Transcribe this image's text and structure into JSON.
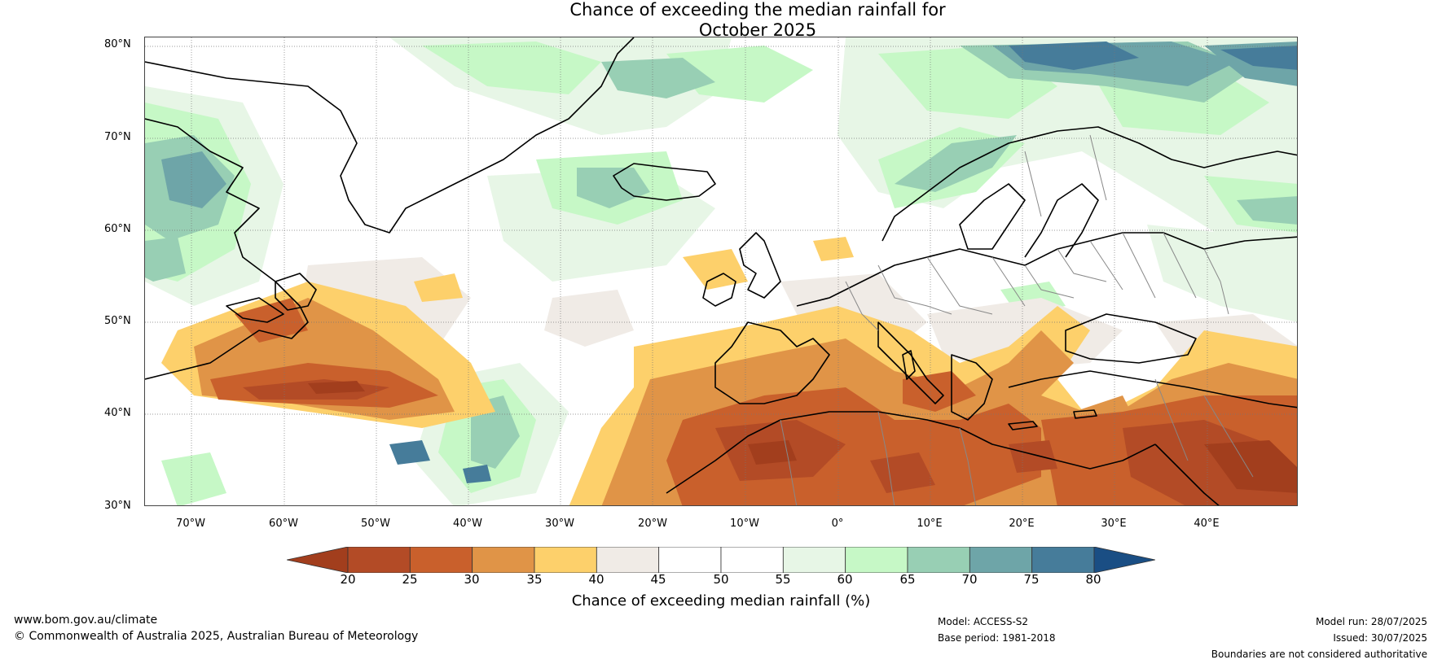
{
  "title": {
    "line1": "Chance of exceeding the median rainfall for",
    "line2": "October 2025"
  },
  "lat_labels": [
    "80°N",
    "70°N",
    "60°N",
    "50°N",
    "40°N",
    "30°N"
  ],
  "lon_labels": [
    "70°W",
    "60°W",
    "50°W",
    "40°W",
    "30°W",
    "20°W",
    "10°W",
    "0°",
    "10°E",
    "20°E",
    "30°E",
    "40°E"
  ],
  "colorbar": {
    "ticks": [
      "20",
      "25",
      "30",
      "35",
      "40",
      "45",
      "50",
      "55",
      "60",
      "65",
      "70",
      "75",
      "80"
    ],
    "colors": [
      "#a23e1d",
      "#b34b26",
      "#c9602c",
      "#e09447",
      "#fdd06b",
      "#f0ebe6",
      "#ffffff",
      "#ffffff",
      "#e7f6e6",
      "#c6f8c6",
      "#98cfb4",
      "#6ea5a8",
      "#467c9a",
      "#1a4e84"
    ],
    "label": "Chance of exceeding median rainfall (%)"
  },
  "footer": {
    "website": "www.bom.gov.au/climate",
    "copyright": "© Commonwealth of Australia 2025, Australian Bureau of Meteorology",
    "model": "Model: ACCESS-S2",
    "base_period": "Base period: 1981-2018",
    "model_run": "Model run: 28/07/2025",
    "issued": "Issued: 30/07/2025",
    "disclaimer": "Boundaries are not considered authoritative"
  }
}
